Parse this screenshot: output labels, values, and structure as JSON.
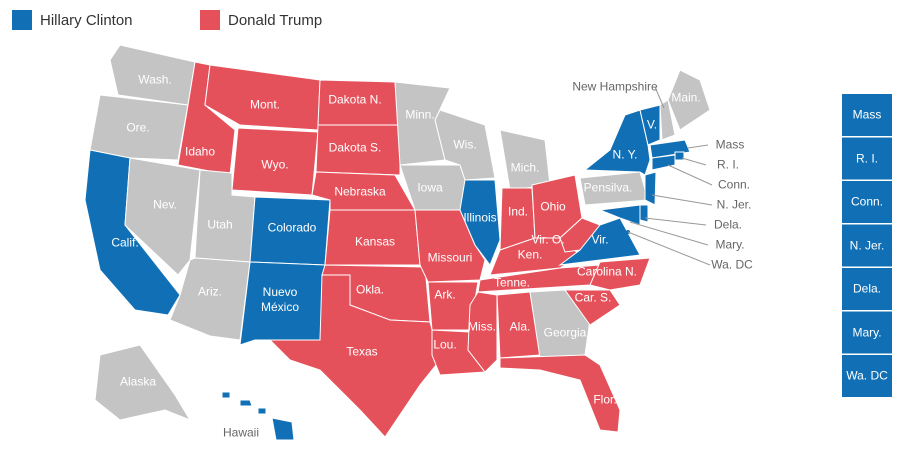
{
  "legend": [
    {
      "name": "Hillary Clinton",
      "color": "#1170b5"
    },
    {
      "name": "Donald Trump",
      "color": "#e5515b"
    }
  ],
  "states": [
    {
      "label": "Wash.",
      "color": "#c4c4c4"
    },
    {
      "label": "Ore.",
      "color": "#c4c4c4"
    },
    {
      "label": "Calif.",
      "color": "#1170b5"
    },
    {
      "label": "Nev.",
      "color": "#c4c4c4"
    },
    {
      "label": "Idaho",
      "color": "#e5515b"
    },
    {
      "label": "Mont.",
      "color": "#e5515b"
    },
    {
      "label": "Wyo.",
      "color": "#e5515b"
    },
    {
      "label": "Utah",
      "color": "#c4c4c4"
    },
    {
      "label": "Ariz.",
      "color": "#c4c4c4"
    },
    {
      "label": "Colorado",
      "color": "#1170b5"
    },
    {
      "label": "Nuevo México",
      "color": "#1170b5"
    },
    {
      "label": "Dakota N.",
      "color": "#e5515b"
    },
    {
      "label": "Dakota S.",
      "color": "#e5515b"
    },
    {
      "label": "Nebraska",
      "color": "#e5515b"
    },
    {
      "label": "Kansas",
      "color": "#e5515b"
    },
    {
      "label": "Okla.",
      "color": "#e5515b"
    },
    {
      "label": "Texas",
      "color": "#e5515b"
    },
    {
      "label": "Minn.",
      "color": "#c4c4c4"
    },
    {
      "label": "Iowa",
      "color": "#c4c4c4"
    },
    {
      "label": "Wis.",
      "color": "#c4c4c4"
    },
    {
      "label": "Missouri",
      "color": "#e5515b"
    },
    {
      "label": "Illinois",
      "color": "#1170b5"
    },
    {
      "label": "Ark.",
      "color": "#e5515b"
    },
    {
      "label": "Lou.",
      "color": "#e5515b"
    },
    {
      "label": "Miss.",
      "color": "#e5515b"
    },
    {
      "label": "Mich.",
      "color": "#c4c4c4"
    },
    {
      "label": "Ind.",
      "color": "#e5515b"
    },
    {
      "label": "Ohio",
      "color": "#e5515b"
    },
    {
      "label": "Ken.",
      "color": "#e5515b"
    },
    {
      "label": "Tenne.",
      "color": "#e5515b"
    },
    {
      "label": "Ala.",
      "color": "#e5515b"
    },
    {
      "label": "Georgia",
      "color": "#c4c4c4"
    },
    {
      "label": "Flor.",
      "color": "#e5515b"
    },
    {
      "label": "Car. S.",
      "color": "#e5515b"
    },
    {
      "label": "Carolina N.",
      "color": "#e5515b"
    },
    {
      "label": "Vir. O.",
      "color": "#e5515b"
    },
    {
      "label": "Vir.",
      "color": "#1170b5"
    },
    {
      "label": "Pensilva.",
      "color": "#c4c4c4"
    },
    {
      "label": "N. Y.",
      "color": "#1170b5"
    },
    {
      "label": "V.",
      "color": "#1170b5"
    },
    {
      "label": "New Hampshire",
      "color": "#c4c4c4"
    },
    {
      "label": "Main.",
      "color": "#c4c4c4"
    },
    {
      "label": "Mass",
      "color": "#1170b5"
    },
    {
      "label": "R. I.",
      "color": "#1170b5"
    },
    {
      "label": "Conn.",
      "color": "#1170b5"
    },
    {
      "label": "N. Jer.",
      "color": "#1170b5"
    },
    {
      "label": "Dela.",
      "color": "#1170b5"
    },
    {
      "label": "Mary.",
      "color": "#1170b5"
    },
    {
      "label": "Wa. DC",
      "color": "#1170b5"
    },
    {
      "label": "Alaska",
      "color": "#c4c4c4"
    },
    {
      "label": "Hawaii",
      "color": "#1170b5"
    }
  ],
  "sidebar": [
    {
      "label": "Mass",
      "color": "#1170b5"
    },
    {
      "label": "R. I.",
      "color": "#1170b5"
    },
    {
      "label": "Conn.",
      "color": "#1170b5"
    },
    {
      "label": "N. Jer.",
      "color": "#1170b5"
    },
    {
      "label": "Dela.",
      "color": "#1170b5"
    },
    {
      "label": "Mary.",
      "color": "#1170b5"
    },
    {
      "label": "Wa. DC",
      "color": "#1170b5"
    }
  ]
}
